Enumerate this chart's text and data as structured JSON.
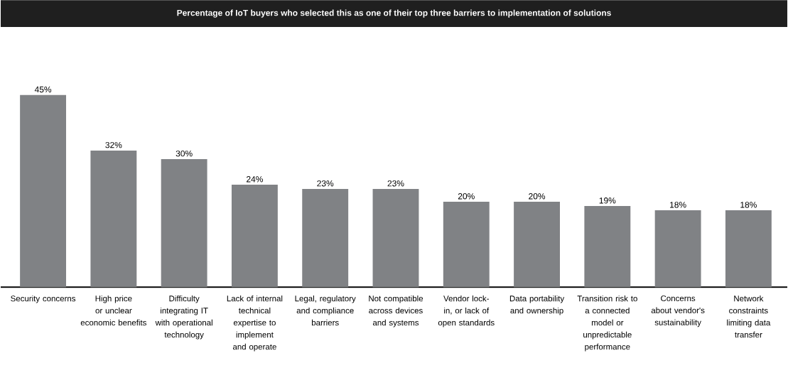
{
  "chart_data": {
    "type": "bar",
    "title": "Percentage of IoT buyers who selected this as one of their top three barriers to implementation of solutions",
    "categories": [
      "Security concerns",
      "High price or unclear economic benefits",
      "Difficulty integrating IT with operational technology",
      "Lack of internal technical expertise to implement and operate",
      "Legal, regulatory and compliance barriers",
      "Not compatible across devices and systems",
      "Vendor lock-in, or lack of open standards",
      "Data portability and ownership",
      "Transition risk to a connected model or unpredictable performance",
      "Concerns about vendor's sustainability",
      "Network constraints limiting data transfer"
    ],
    "values": [
      45,
      32,
      30,
      24,
      23,
      23,
      20,
      20,
      19,
      18,
      18
    ],
    "value_labels": [
      "45%",
      "32%",
      "30%",
      "24%",
      "23%",
      "23%",
      "20%",
      "20%",
      "19%",
      "18%",
      "18%"
    ],
    "color": "#808285"
  }
}
